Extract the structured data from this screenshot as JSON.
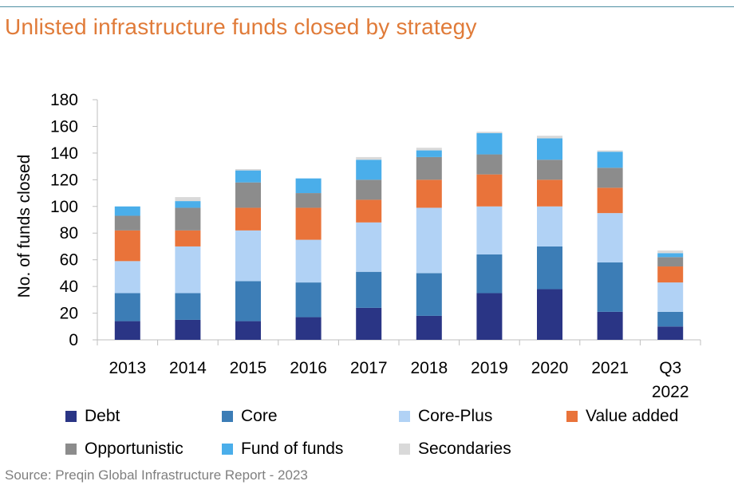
{
  "page": {
    "title": "Unlisted infrastructure funds closed by strategy",
    "source": "Source: Preqin Global Infrastructure Report - 2023"
  },
  "chart_data": {
    "type": "bar",
    "stacked": true,
    "title": "Unlisted infrastructure funds closed by strategy",
    "xlabel": "",
    "ylabel": "No. of funds closed",
    "ylim": [
      0,
      180
    ],
    "yticks": [
      0,
      20,
      40,
      60,
      80,
      100,
      120,
      140,
      160,
      180
    ],
    "grid": false,
    "legend_position": "bottom",
    "categories": [
      "2013",
      "2014",
      "2015",
      "2016",
      "2017",
      "2018",
      "2019",
      "2020",
      "2021",
      "Q3 2022"
    ],
    "category_lines": [
      [
        "2013"
      ],
      [
        "2014"
      ],
      [
        "2015"
      ],
      [
        "2016"
      ],
      [
        "2017"
      ],
      [
        "2018"
      ],
      [
        "2019"
      ],
      [
        "2020"
      ],
      [
        "2021"
      ],
      [
        "Q3",
        "2022"
      ]
    ],
    "series": [
      {
        "name": "Debt",
        "color": "#2a3585",
        "values": [
          14,
          15,
          14,
          17,
          24,
          18,
          35,
          38,
          21,
          10
        ]
      },
      {
        "name": "Core",
        "color": "#3c7db6",
        "values": [
          21,
          20,
          30,
          26,
          27,
          32,
          29,
          32,
          37,
          11
        ]
      },
      {
        "name": "Core-Plus",
        "color": "#b1d2f5",
        "values": [
          24,
          35,
          38,
          32,
          37,
          49,
          36,
          30,
          37,
          22
        ]
      },
      {
        "name": "Value added",
        "color": "#e9733a",
        "values": [
          23,
          12,
          17,
          24,
          17,
          21,
          24,
          20,
          19,
          12
        ]
      },
      {
        "name": "Opportunistic",
        "color": "#8c8c8c",
        "values": [
          11,
          17,
          19,
          11,
          15,
          17,
          15,
          15,
          15,
          7
        ]
      },
      {
        "name": "Fund of funds",
        "color": "#4aaeea",
        "values": [
          7,
          5,
          9,
          11,
          15,
          5,
          16,
          16,
          12,
          3
        ]
      },
      {
        "name": "Secondaries",
        "color": "#d9d9d9",
        "values": [
          0,
          3,
          1,
          0,
          2,
          2,
          1,
          2,
          1,
          2
        ]
      }
    ]
  }
}
